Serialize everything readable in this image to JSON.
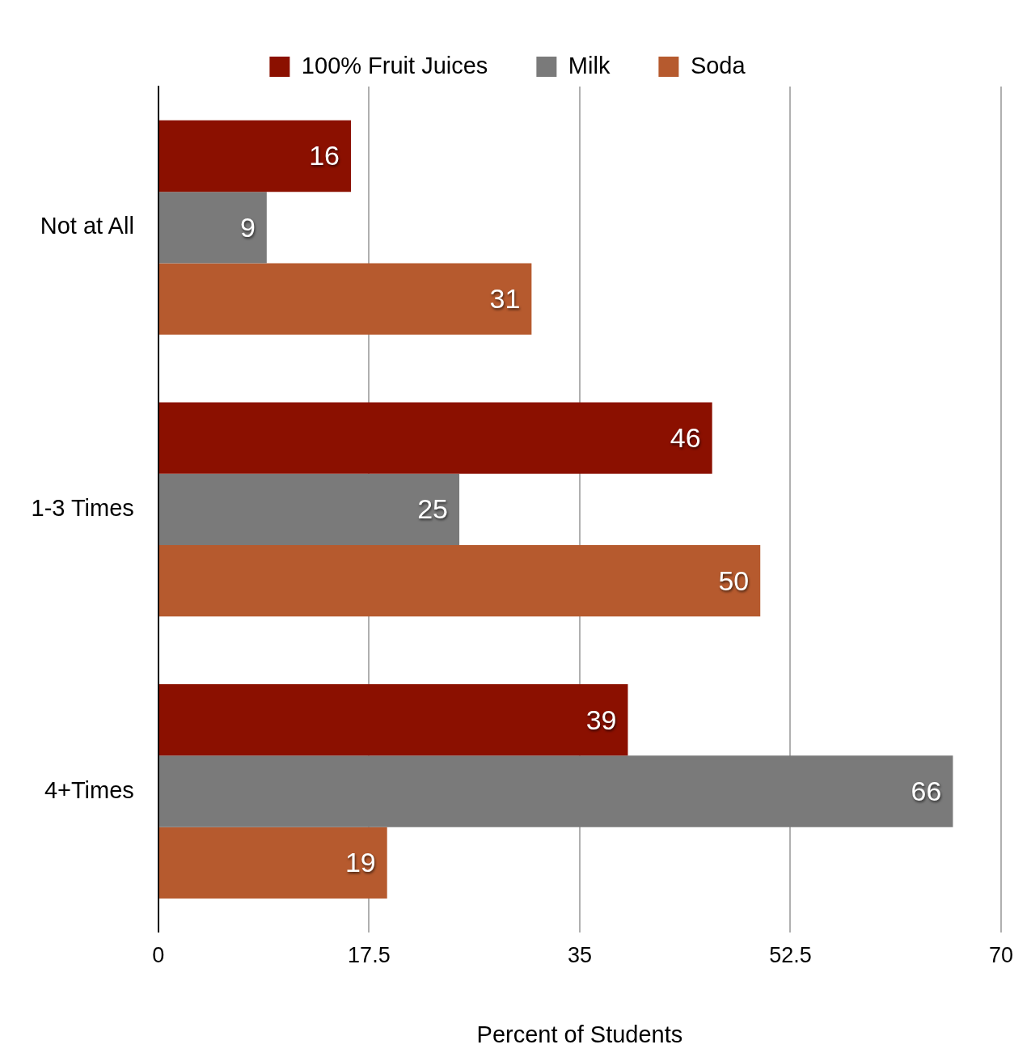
{
  "chart_data": {
    "type": "bar",
    "orientation": "horizontal",
    "xlabel": "Percent of Students",
    "categories": [
      "Not at All",
      "1-3 Times",
      "4+Times"
    ],
    "series": [
      {
        "name": "100% Fruit Juices",
        "color": "#8b1000",
        "values": [
          16,
          46,
          39
        ]
      },
      {
        "name": "Milk",
        "color": "#7a7a7a",
        "values": [
          9,
          25,
          66
        ]
      },
      {
        "name": "Soda",
        "color": "#b65a2e",
        "values": [
          31,
          50,
          19
        ]
      }
    ],
    "xlim": [
      0,
      70
    ],
    "xticks": [
      0,
      17.5,
      35,
      52.5,
      70
    ],
    "grid": "x",
    "legend": "top",
    "data_labels": true
  }
}
